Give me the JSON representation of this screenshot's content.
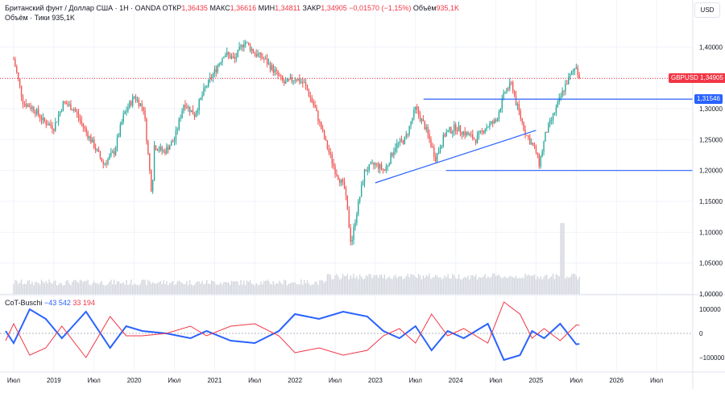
{
  "header": {
    "title": "Британский фунт / Доллар США · 1Н · OANDA",
    "ohlc": [
      {
        "label": "ОТКР",
        "value": "1,36435"
      },
      {
        "label": "МАКС",
        "value": "1,36616"
      },
      {
        "label": "МИН",
        "value": "1,34811"
      },
      {
        "label": "ЗАКР",
        "value": "1,34905"
      }
    ],
    "change": "−0,01570 (−1,15%)",
    "volume_label": "Объём",
    "volume_value": "935,1K",
    "volume_row_label": "Объём · Тики",
    "volume_row_value": "935,1K"
  },
  "currency_button": "USD",
  "indicator": {
    "name": "CoT-Buschi",
    "value1": "−43 542",
    "value2": "33 194",
    "color1": "#2962ff",
    "color2": "#f23645"
  },
  "tags": {
    "symbol_label": "GBPUSD",
    "symbol_price": "1,34905",
    "line_price": "1,31546",
    "symbol_color": "#f23645",
    "line_color": "#2962ff"
  },
  "colors": {
    "up": "#26a69a",
    "down": "#ef5350",
    "line": "#2962ff",
    "volume": "#d1d4dc"
  },
  "chart_data": [
    {
      "type": "candlestick",
      "title": "Британский фунт / Доллар США · 1Н · OANDA",
      "ylim": [
        1.0,
        1.45
      ],
      "y_ticks": [
        "1,40000",
        "1,35000",
        "1,30000",
        "1,25000",
        "1,20000",
        "1,15000",
        "1,10000",
        "1,05000",
        "1,00000"
      ],
      "x_ticks": [
        "Июл",
        "2019",
        "Июл",
        "2020",
        "Июл",
        "2021",
        "Июл",
        "2022",
        "Июл",
        "2023",
        "Июл",
        "2024",
        "Июл",
        "2025",
        "Июл",
        "2026",
        "Июл"
      ],
      "close_path": [
        [
          2018.5,
          1.38
        ],
        [
          2018.62,
          1.31
        ],
        [
          2018.75,
          1.3
        ],
        [
          2018.87,
          1.28
        ],
        [
          2019.0,
          1.27
        ],
        [
          2019.12,
          1.31
        ],
        [
          2019.25,
          1.3
        ],
        [
          2019.37,
          1.27
        ],
        [
          2019.5,
          1.24
        ],
        [
          2019.62,
          1.21
        ],
        [
          2019.75,
          1.23
        ],
        [
          2019.87,
          1.29
        ],
        [
          2020.0,
          1.32
        ],
        [
          2020.12,
          1.3
        ],
        [
          2020.22,
          1.16
        ],
        [
          2020.25,
          1.24
        ],
        [
          2020.37,
          1.23
        ],
        [
          2020.5,
          1.25
        ],
        [
          2020.62,
          1.31
        ],
        [
          2020.75,
          1.29
        ],
        [
          2020.87,
          1.33
        ],
        [
          2021.0,
          1.36
        ],
        [
          2021.12,
          1.39
        ],
        [
          2021.25,
          1.38
        ],
        [
          2021.37,
          1.41
        ],
        [
          2021.5,
          1.39
        ],
        [
          2021.62,
          1.38
        ],
        [
          2021.75,
          1.36
        ],
        [
          2021.87,
          1.34
        ],
        [
          2022.0,
          1.35
        ],
        [
          2022.12,
          1.34
        ],
        [
          2022.25,
          1.3
        ],
        [
          2022.37,
          1.25
        ],
        [
          2022.5,
          1.2
        ],
        [
          2022.62,
          1.17
        ],
        [
          2022.7,
          1.08
        ],
        [
          2022.75,
          1.12
        ],
        [
          2022.87,
          1.2
        ],
        [
          2023.0,
          1.21
        ],
        [
          2023.12,
          1.2
        ],
        [
          2023.25,
          1.24
        ],
        [
          2023.37,
          1.25
        ],
        [
          2023.5,
          1.3
        ],
        [
          2023.62,
          1.27
        ],
        [
          2023.75,
          1.22
        ],
        [
          2023.87,
          1.26
        ],
        [
          2024.0,
          1.27
        ],
        [
          2024.12,
          1.26
        ],
        [
          2024.25,
          1.25
        ],
        [
          2024.37,
          1.27
        ],
        [
          2024.5,
          1.28
        ],
        [
          2024.62,
          1.33
        ],
        [
          2024.7,
          1.34
        ],
        [
          2024.75,
          1.31
        ],
        [
          2024.87,
          1.26
        ],
        [
          2025.0,
          1.23
        ],
        [
          2025.04,
          1.21
        ],
        [
          2025.12,
          1.26
        ],
        [
          2025.25,
          1.3
        ],
        [
          2025.37,
          1.34
        ],
        [
          2025.5,
          1.37
        ],
        [
          2025.54,
          1.349
        ]
      ],
      "volume_label": "Объём · Тики",
      "volume_last": "935,1K",
      "horizontal_levels": [
        1.31546,
        1.2
      ],
      "trendline": [
        [
          2023.0,
          1.18
        ],
        [
          2025.0,
          1.265
        ]
      ],
      "last_price": 1.34905
    },
    {
      "type": "line",
      "title": "CoT-Buschi",
      "ylim": [
        -160000,
        160000
      ],
      "y_ticks": [
        "100000",
        "0",
        "−100000"
      ],
      "series": [
        {
          "name": "−43 542",
          "color": "#2962ff",
          "values": [
            [
              2018.4,
              10000
            ],
            [
              2018.5,
              -40000
            ],
            [
              2018.7,
              100000
            ],
            [
              2018.9,
              60000
            ],
            [
              2019.1,
              -20000
            ],
            [
              2019.4,
              90000
            ],
            [
              2019.7,
              -60000
            ],
            [
              2019.9,
              30000
            ],
            [
              2020.1,
              10000
            ],
            [
              2020.4,
              0
            ],
            [
              2020.7,
              -20000
            ],
            [
              2020.9,
              10000
            ],
            [
              2021.2,
              -30000
            ],
            [
              2021.5,
              -40000
            ],
            [
              2021.8,
              10000
            ],
            [
              2022.0,
              80000
            ],
            [
              2022.3,
              60000
            ],
            [
              2022.6,
              90000
            ],
            [
              2022.9,
              70000
            ],
            [
              2023.1,
              10000
            ],
            [
              2023.3,
              -20000
            ],
            [
              2023.5,
              30000
            ],
            [
              2023.7,
              -70000
            ],
            [
              2023.9,
              10000
            ],
            [
              2024.1,
              -20000
            ],
            [
              2024.4,
              40000
            ],
            [
              2024.6,
              -110000
            ],
            [
              2024.8,
              -90000
            ],
            [
              2024.95,
              10000
            ],
            [
              2025.1,
              -20000
            ],
            [
              2025.3,
              40000
            ],
            [
              2025.5,
              -45000
            ],
            [
              2025.54,
              -43542
            ]
          ]
        },
        {
          "name": "33 194",
          "color": "#f23645",
          "values": [
            [
              2018.4,
              -30000
            ],
            [
              2018.5,
              40000
            ],
            [
              2018.7,
              -90000
            ],
            [
              2018.9,
              -60000
            ],
            [
              2019.1,
              30000
            ],
            [
              2019.4,
              -100000
            ],
            [
              2019.7,
              70000
            ],
            [
              2019.9,
              -10000
            ],
            [
              2020.1,
              -10000
            ],
            [
              2020.4,
              0
            ],
            [
              2020.7,
              30000
            ],
            [
              2020.9,
              -10000
            ],
            [
              2021.2,
              30000
            ],
            [
              2021.5,
              40000
            ],
            [
              2021.8,
              -10000
            ],
            [
              2022.0,
              -80000
            ],
            [
              2022.3,
              -60000
            ],
            [
              2022.6,
              -90000
            ],
            [
              2022.9,
              -70000
            ],
            [
              2023.1,
              -10000
            ],
            [
              2023.3,
              20000
            ],
            [
              2023.5,
              -40000
            ],
            [
              2023.7,
              80000
            ],
            [
              2023.9,
              -10000
            ],
            [
              2024.1,
              20000
            ],
            [
              2024.4,
              -40000
            ],
            [
              2024.6,
              130000
            ],
            [
              2024.8,
              80000
            ],
            [
              2024.95,
              -20000
            ],
            [
              2025.1,
              20000
            ],
            [
              2025.3,
              -30000
            ],
            [
              2025.5,
              35000
            ],
            [
              2025.54,
              33194
            ]
          ]
        }
      ]
    }
  ]
}
